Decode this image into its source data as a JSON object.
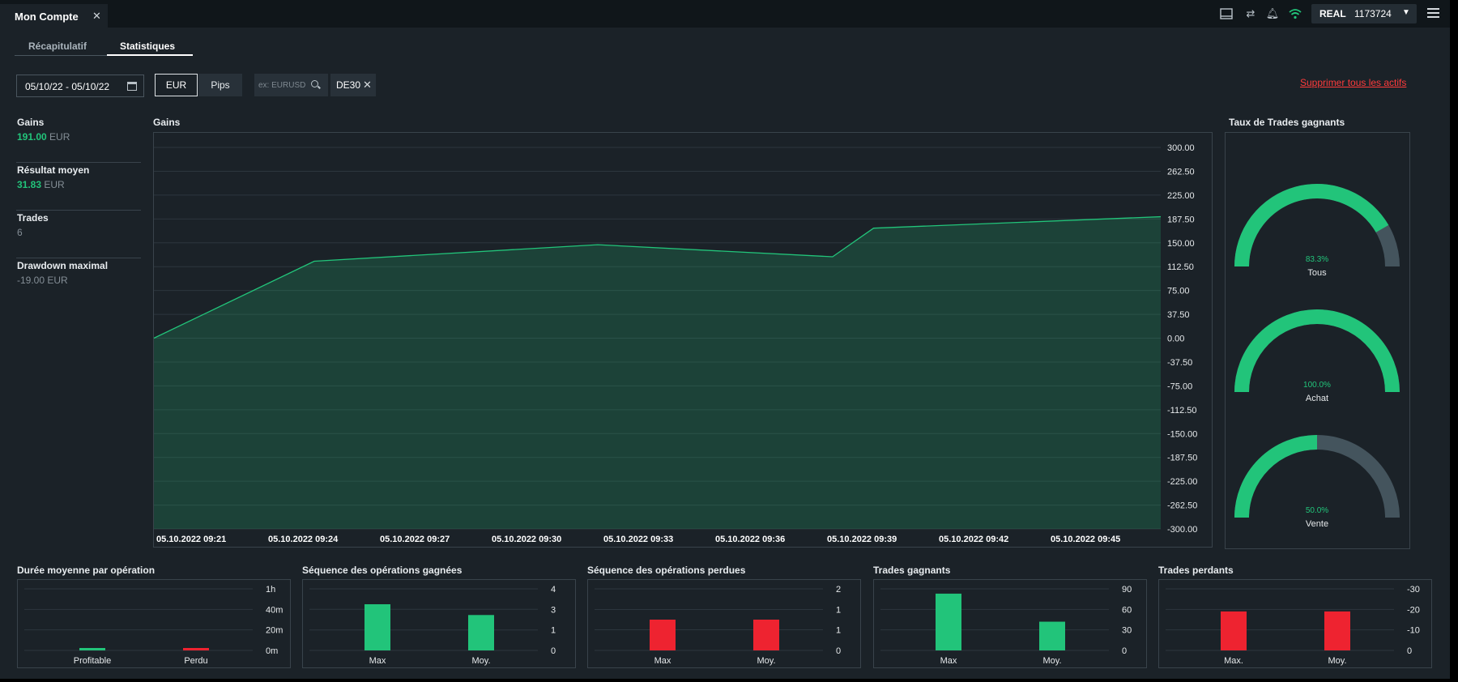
{
  "window_tab": {
    "title": "Mon Compte"
  },
  "header": {
    "account_type": "REAL",
    "account_number": "1173724"
  },
  "icons": [
    "layout-icon",
    "transfer-icon",
    "bell-icon",
    "wifi-icon",
    "menu-icon"
  ],
  "tabs": [
    {
      "label": "Récapitulatif",
      "active": false
    },
    {
      "label": "Statistiques",
      "active": true
    }
  ],
  "filters": {
    "date_range": "05/10/22 - 05/10/22",
    "unit_eur": "EUR",
    "unit_pips": "Pips",
    "search_placeholder": "ex: EURUSD",
    "chip": "DE30",
    "clear_all": "Supprimer tous les actifs"
  },
  "stats": [
    {
      "label": "Gains",
      "value": "191.00",
      "unit": "EUR",
      "tone": "green"
    },
    {
      "label": "Résultat moyen",
      "value": "31.83",
      "unit": "EUR",
      "tone": "green"
    },
    {
      "label": "Trades",
      "value": "6",
      "unit": "",
      "tone": "grey"
    },
    {
      "label": "Drawdown maximal",
      "value": "-19.00",
      "unit": "EUR",
      "tone": "grey"
    }
  ],
  "colors": {
    "accent_green": "#22c47a",
    "loss_red": "#ee2330",
    "gauge_rest": "#44545d",
    "link_red": "#ff3b3b"
  },
  "chart_data": [
    {
      "type": "area",
      "title": "Gains",
      "x_tick_labels": [
        "05.10.2022 09:21",
        "05.10.2022 09:24",
        "05.10.2022 09:27",
        "05.10.2022 09:30",
        "05.10.2022 09:33",
        "05.10.2022 09:36",
        "05.10.2022 09:39",
        "05.10.2022 09:42",
        "05.10.2022 09:45"
      ],
      "xlim": [
        0,
        27
      ],
      "y_ticks": [
        "300.00",
        "262.50",
        "225.00",
        "187.50",
        "150.00",
        "112.50",
        "75.00",
        "37.50",
        "0.00",
        "-37.50",
        "-75.00",
        "-112.50",
        "-150.00",
        "-187.50",
        "-225.00",
        "-262.50",
        "-300.00"
      ],
      "ylim": [
        -300,
        300
      ],
      "x": [
        0,
        4.3,
        11.9,
        18.2,
        19.3,
        27
      ],
      "y": [
        0,
        121,
        147,
        128,
        173,
        191
      ]
    },
    {
      "type": "gauge",
      "title": "Taux de Trades gagnants",
      "items": [
        {
          "label": "Tous",
          "value": 83.3,
          "text": "83.3%"
        },
        {
          "label": "Achat",
          "value": 100.0,
          "text": "100.0%"
        },
        {
          "label": "Vente",
          "value": 50.0,
          "text": "50.0%"
        }
      ]
    },
    {
      "type": "bar",
      "title": "Durée moyenne par opération",
      "categories": [
        "Profitable",
        "Perdu"
      ],
      "values": [
        0.2,
        0.5
      ],
      "colors": [
        "#22c47a",
        "#ee2330"
      ],
      "ylim": [
        0,
        60
      ],
      "y_ticks": [
        {
          "v": 60,
          "t": "1h"
        },
        {
          "v": 40,
          "t": "40m"
        },
        {
          "v": 20,
          "t": "20m"
        },
        {
          "v": 0,
          "t": "0m"
        }
      ]
    },
    {
      "type": "bar",
      "title": "Séquence des opérations gagnées",
      "categories": [
        "Max",
        "Moy."
      ],
      "values": [
        3,
        2.3
      ],
      "colors": [
        "#22c47a",
        "#22c47a"
      ],
      "ylim": [
        0,
        4
      ],
      "y_ticks": [
        {
          "v": 4,
          "t": "4"
        },
        {
          "v": 2.67,
          "t": "3"
        },
        {
          "v": 1.33,
          "t": "1"
        },
        {
          "v": 0,
          "t": "0"
        }
      ]
    },
    {
      "type": "bar",
      "title": "Séquence des opérations perdues",
      "categories": [
        "Max",
        "Moy."
      ],
      "values": [
        1,
        1
      ],
      "colors": [
        "#ee2330",
        "#ee2330"
      ],
      "ylim": [
        0,
        2
      ],
      "y_ticks": [
        {
          "v": 2,
          "t": "2"
        },
        {
          "v": 1.33,
          "t": "1"
        },
        {
          "v": 0.67,
          "t": "1"
        },
        {
          "v": 0,
          "t": "0"
        }
      ]
    },
    {
      "type": "bar",
      "title": "Trades gagnants",
      "categories": [
        "Max",
        "Moy."
      ],
      "values": [
        83,
        42
      ],
      "colors": [
        "#22c47a",
        "#22c47a"
      ],
      "ylim": [
        0,
        90
      ],
      "y_ticks": [
        {
          "v": 90,
          "t": "90"
        },
        {
          "v": 60,
          "t": "60"
        },
        {
          "v": 30,
          "t": "30"
        },
        {
          "v": 0,
          "t": "0"
        }
      ]
    },
    {
      "type": "bar",
      "title": "Trades perdants",
      "categories": [
        "Max.",
        "Moy."
      ],
      "values": [
        -19,
        -19
      ],
      "colors": [
        "#ee2330",
        "#ee2330"
      ],
      "ylim": [
        0,
        -30
      ],
      "y_ticks": [
        {
          "v": -30,
          "t": "-30"
        },
        {
          "v": -20,
          "t": "-20"
        },
        {
          "v": -10,
          "t": "-10"
        },
        {
          "v": 0,
          "t": "0"
        }
      ]
    }
  ]
}
